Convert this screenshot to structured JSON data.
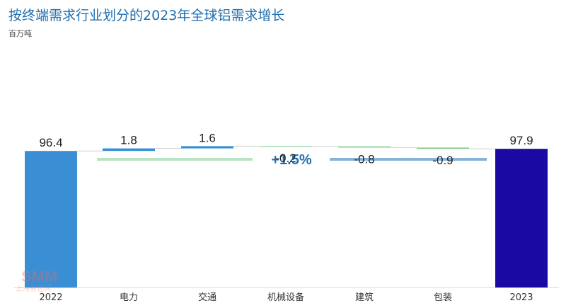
{
  "chart_data": {
    "type": "waterfall",
    "title": "按终端需求行业划分的2023年全球铝需求增长",
    "unit_label": "百万吨",
    "categories": [
      "2022",
      "电力",
      "交通",
      "机械设备",
      "建筑",
      "包装",
      "2023"
    ],
    "values": [
      96.4,
      1.8,
      1.6,
      -0.2,
      -0.8,
      -0.9,
      97.9
    ],
    "value_labels": [
      "96.4",
      "1.8",
      "1.6",
      "-0.2",
      "-0.8",
      "-0.9",
      "97.9"
    ],
    "kinds": [
      "total",
      "delta",
      "delta",
      "delta",
      "delta",
      "delta",
      "total"
    ],
    "growth_annotation": "+1.5%",
    "colors": {
      "total_start": "#3a8fd4",
      "increase": "#3a8fd4",
      "decrease": "#7dcc8d",
      "total_end": "#1a0aa3",
      "growth_text": "#1f6fb0",
      "line_left": "#b8e3c2",
      "line_right": "#86b4d8"
    }
  },
  "watermark": {
    "logo": "SMM",
    "text": "上海有色网"
  }
}
